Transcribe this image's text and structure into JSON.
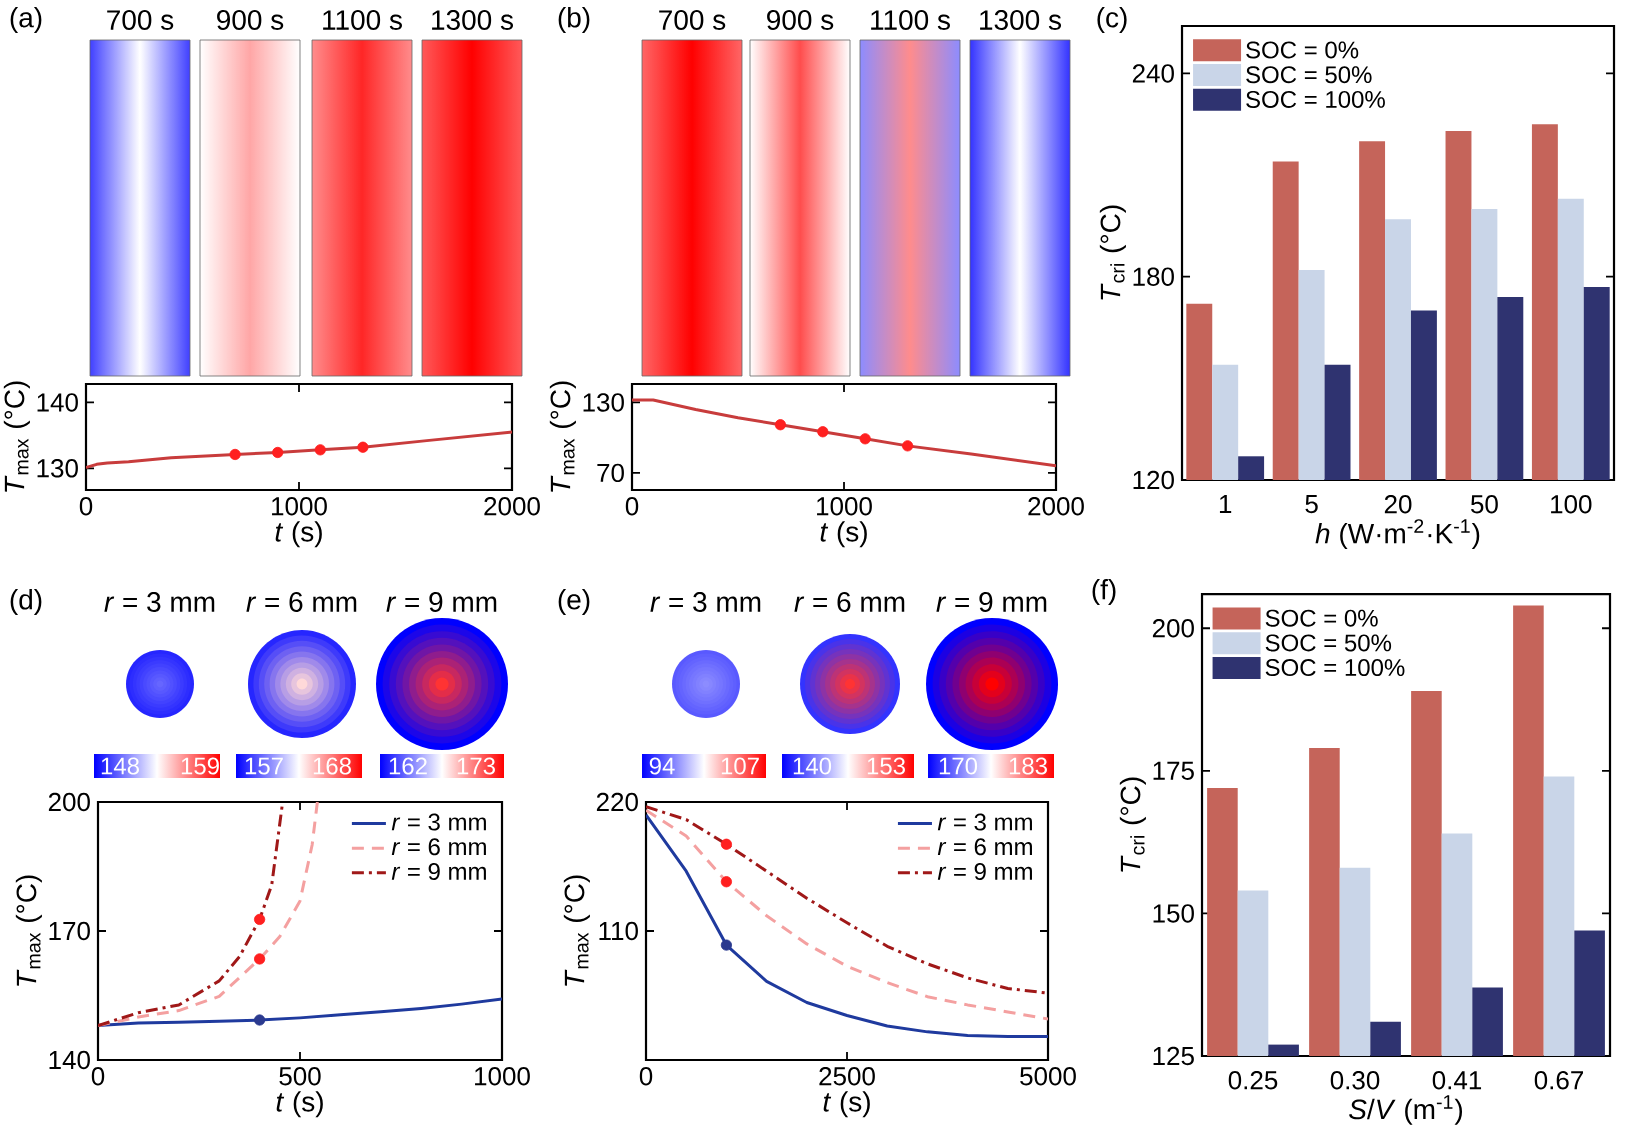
{
  "chart_data": [
    {
      "type": "line",
      "xlabel": "*t* (s)",
      "ylabel": "*T*$_{max}$ (°C)",
      "xlim": [
        0,
        2000
      ],
      "xticks": [
        0,
        1000,
        2000
      ],
      "ylim": [
        126.7,
        142.8
      ],
      "yticks": [
        130,
        140
      ],
      "series": [
        {
          "color": "#c83c3c",
          "x": [
            0,
            50,
            100,
            200,
            400,
            700,
            900,
            1100,
            1300,
            1600,
            2000
          ],
          "values": [
            130.1,
            130.6,
            130.8,
            131.0,
            131.6,
            132.1,
            132.4,
            132.8,
            133.2,
            134.2,
            135.5
          ]
        },
        {
          "type": "scatter",
          "color": "#ff2020",
          "x": [
            700,
            900,
            1100,
            1300
          ],
          "values": [
            132.1,
            132.4,
            132.8,
            133.2
          ]
        }
      ],
      "annotations": [
        "(a)",
        "700 s",
        "900 s",
        "1100 s",
        "1300 s"
      ]
    },
    {
      "type": "line",
      "xlabel": "*t* (s)",
      "ylabel": "*T*$_{max}$ (°C)",
      "xlim": [
        0,
        2000
      ],
      "xticks": [
        0,
        1000,
        2000
      ],
      "ylim": [
        55.4,
        145.7
      ],
      "yticks": [
        70,
        130
      ],
      "series": [
        {
          "color": "#c83c3c",
          "x": [
            0,
            100,
            300,
            500,
            700,
            900,
            1100,
            1300,
            1600,
            2000
          ],
          "values": [
            132,
            132,
            124,
            117,
            111,
            105,
            99,
            93,
            86,
            76
          ]
        },
        {
          "type": "scatter",
          "color": "#ff2020",
          "x": [
            700,
            900,
            1100,
            1300
          ],
          "values": [
            111,
            105,
            99,
            93
          ]
        }
      ],
      "annotations": [
        "(b)",
        "700 s",
        "900 s",
        "1100 s",
        "1300 s"
      ]
    },
    {
      "type": "bar",
      "xlabel": "*h* (W·m$^{-2}$·K$^{-1}$)",
      "ylabel": "*T*$_{cri}$ (°C)",
      "categories": [
        "1",
        "5",
        "20",
        "50",
        "100"
      ],
      "ylim": [
        120,
        254
      ],
      "yticks": [
        120,
        180,
        240
      ],
      "legend": "top left",
      "series": [
        {
          "name": "SOC = 0%",
          "color": "#c5645a",
          "values": [
            172,
            214,
            220,
            223,
            225
          ]
        },
        {
          "name": "SOC = 50%",
          "color": "#c9d5e8",
          "values": [
            154,
            182,
            197,
            200,
            203
          ]
        },
        {
          "name": "SOC = 100%",
          "color": "#2f3370",
          "values": [
            127,
            154,
            170,
            174,
            177
          ]
        }
      ],
      "annotations": [
        "(c)"
      ]
    },
    {
      "type": "line",
      "xlabel": "*t* (s)",
      "ylabel": "*T*$_{max}$ (°C)",
      "xlim": [
        0,
        1000
      ],
      "xticks": [
        0,
        500,
        1000
      ],
      "ylim": [
        140,
        200
      ],
      "yticks": [
        140,
        170,
        200
      ],
      "legend": "top right",
      "series": [
        {
          "name": "*r* = 3 mm",
          "color": "#1f3a9e",
          "line_style": "solid",
          "x": [
            0,
            100,
            200,
            300,
            400,
            500,
            600,
            700,
            800,
            900,
            1000
          ],
          "values": [
            148,
            148.6,
            148.8,
            149.0,
            149.3,
            149.8,
            150.5,
            151.2,
            152.0,
            153.0,
            154.2
          ]
        },
        {
          "name": "*r* = 6 mm",
          "color": "#f4a0a0",
          "line_style": "dashed",
          "x": [
            0,
            100,
            200,
            300,
            400,
            450,
            500,
            530,
            543
          ],
          "values": [
            148,
            150,
            151.5,
            154.8,
            163.5,
            168.7,
            177,
            190,
            200
          ]
        },
        {
          "name": "*r* = 9 mm",
          "color": "#a01818",
          "line_style": "dashdot",
          "x": [
            0,
            100,
            200,
            300,
            350,
            400,
            430,
            457
          ],
          "values": [
            148,
            151,
            152.8,
            158.4,
            164,
            172.7,
            180.7,
            200
          ]
        },
        {
          "type": "scatter",
          "color": "#ff2020",
          "x": [
            400,
            400
          ],
          "values": [
            172.7,
            163.5
          ]
        },
        {
          "type": "scatter",
          "color": "#2b3a8f",
          "x": [
            400
          ],
          "values": [
            149.3
          ]
        }
      ],
      "annotations": [
        "(d)",
        "*r* = 3 mm",
        "*r* = 6 mm",
        "*r* = 9 mm",
        "148",
        "159",
        "157",
        "168",
        "162",
        "173"
      ]
    },
    {
      "type": "line",
      "xlabel": "*t* (s)",
      "ylabel": "*T*$_{max}$ (°C)",
      "xlim": [
        0,
        5000
      ],
      "xticks": [
        0,
        2500,
        5000
      ],
      "ylim": [
        0,
        220
      ],
      "yticks": [
        110,
        220
      ],
      "legend": "top right",
      "series": [
        {
          "name": "*r* = 3 mm",
          "color": "#1f3a9e",
          "line_style": "solid",
          "x": [
            0,
            500,
            1000,
            1500,
            2000,
            2500,
            3000,
            3500,
            4000,
            4500,
            5000
          ],
          "values": [
            209,
            161,
            98,
            67,
            49,
            38,
            29,
            24,
            21,
            20,
            20
          ]
        },
        {
          "name": "*r* = 6 mm",
          "color": "#f4a0a0",
          "line_style": "dashed",
          "x": [
            0,
            500,
            1000,
            1500,
            2000,
            2500,
            3000,
            3500,
            4000,
            4500,
            5000
          ],
          "values": [
            213,
            191,
            152,
            123,
            99,
            80,
            66,
            54,
            47,
            41,
            35
          ]
        },
        {
          "name": "*r* = 9 mm",
          "color": "#a01818",
          "line_style": "dashdot",
          "x": [
            0,
            500,
            1000,
            1500,
            2000,
            2500,
            3000,
            3500,
            4000,
            4500,
            5000
          ],
          "values": [
            216,
            205,
            184,
            161,
            138,
            117,
            97,
            82,
            70,
            61,
            57
          ]
        },
        {
          "type": "scatter",
          "color": "#ff2020",
          "x": [
            1000,
            1000
          ],
          "values": [
            184,
            152
          ]
        },
        {
          "type": "scatter",
          "color": "#2b3a8f",
          "x": [
            1000
          ],
          "values": [
            98
          ]
        }
      ],
      "annotations": [
        "(e)",
        "*r* = 3 mm",
        "*r* = 6 mm",
        "*r* = 9 mm",
        "94",
        "107",
        "140",
        "153",
        "170",
        "183"
      ]
    },
    {
      "type": "bar",
      "xlabel": "*S*/*V* (m$^{-1}$)",
      "ylabel": "*T*$_{cri}$ (°C)",
      "categories": [
        "0.25",
        "0.30",
        "0.41",
        "0.67"
      ],
      "ylim": [
        125,
        206
      ],
      "yticks": [
        125,
        150,
        175,
        200
      ],
      "legend": "top left",
      "series": [
        {
          "name": "SOC = 0%",
          "color": "#c5645a",
          "values": [
            172,
            179,
            189,
            204
          ]
        },
        {
          "name": "SOC = 50%",
          "color": "#c9d5e8",
          "values": [
            154,
            158,
            164,
            174
          ]
        },
        {
          "name": "SOC = 100%",
          "color": "#2f3370",
          "values": [
            127,
            131,
            137,
            147
          ]
        }
      ],
      "annotations": [
        "(f)"
      ]
    }
  ]
}
